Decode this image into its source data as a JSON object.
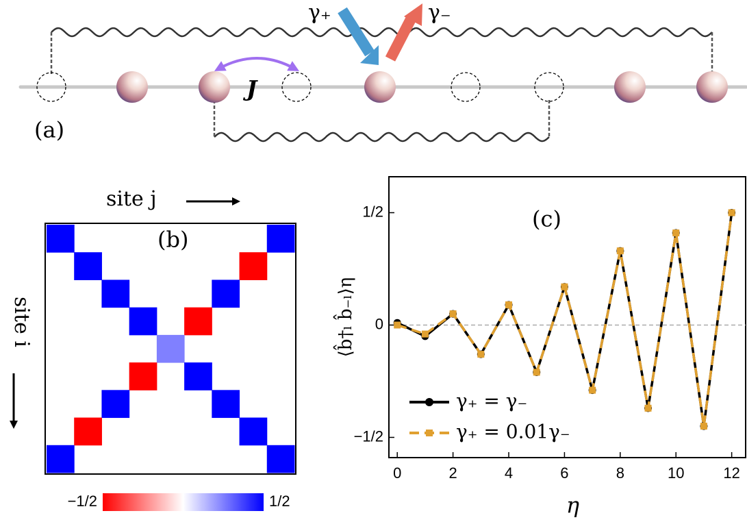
{
  "panel_a": {
    "label": "(a)",
    "gamma_plus": "γ₊",
    "gamma_minus": "γ₋",
    "hopping": "J"
  },
  "chart_data": [
    {
      "type": "heatmap",
      "title": "(b)",
      "x_label": "site j",
      "y_label": "site i",
      "values": [
        [
          0.5,
          0,
          0,
          0,
          0,
          0,
          0,
          0,
          0.5
        ],
        [
          0,
          0.5,
          0,
          0,
          0,
          0,
          0,
          -0.5,
          0
        ],
        [
          0,
          0,
          0.5,
          0,
          0,
          0,
          0.5,
          0,
          0
        ],
        [
          0,
          0,
          0,
          0.5,
          0,
          -0.5,
          0,
          0,
          0
        ],
        [
          0,
          0,
          0,
          0,
          0.25,
          0,
          0,
          0,
          0
        ],
        [
          0,
          0,
          0,
          -0.5,
          0,
          0.5,
          0,
          0,
          0
        ],
        [
          0,
          0,
          0.5,
          0,
          0,
          0,
          0.5,
          0,
          0
        ],
        [
          0,
          -0.5,
          0,
          0,
          0,
          0,
          0,
          0.5,
          0
        ],
        [
          0.5,
          0,
          0,
          0,
          0,
          0,
          0,
          0,
          0.5
        ]
      ],
      "clim": [
        -0.5,
        0.5
      ],
      "low_color": "#ff0000",
      "high_color": "#0000ff",
      "colorbar_ticks": [
        {
          "value": -0.5,
          "label": "−1/2"
        },
        {
          "value": 0.5,
          "label": "1/2"
        }
      ]
    },
    {
      "type": "line",
      "title": "(c)",
      "x_label": "η",
      "y_label": "⟨b̂†ₗ b̂₋ₗ⟩η",
      "x": [
        0,
        1,
        2,
        3,
        4,
        5,
        6,
        7,
        8,
        9,
        10,
        11,
        12
      ],
      "series": [
        {
          "name": "γ₊ = γ₋",
          "color": "#000000",
          "marker": "circle",
          "dash": false,
          "values": [
            0.01,
            -0.05,
            0.05,
            -0.13,
            0.09,
            -0.21,
            0.17,
            -0.29,
            0.33,
            -0.37,
            0.41,
            -0.45,
            0.5
          ]
        },
        {
          "name": "γ₊ = 0.01γ₋",
          "color": "#e0a030",
          "marker": "square",
          "dash": true,
          "values": [
            0.0,
            -0.04,
            0.05,
            -0.13,
            0.09,
            -0.21,
            0.17,
            -0.29,
            0.33,
            -0.37,
            0.41,
            -0.45,
            0.5
          ]
        }
      ],
      "xlim": [
        -0.3,
        12.5
      ],
      "ylim": [
        -0.59,
        0.66
      ],
      "xticks": [
        0,
        2,
        4,
        6,
        8,
        10,
        12
      ],
      "yticks": [
        {
          "value": -0.5,
          "label": "−1/2"
        },
        0,
        {
          "value": 0.5,
          "label": "1/2"
        }
      ],
      "zero_line": true,
      "legend": "lower left"
    }
  ]
}
